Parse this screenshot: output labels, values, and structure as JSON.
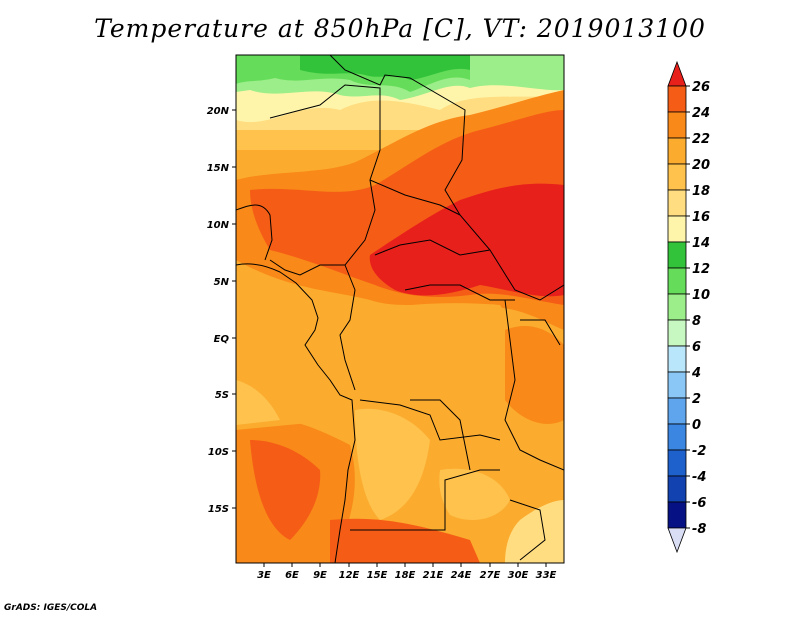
{
  "title": "Temperature at 850hPa [C], VT: 2019013100",
  "credit": "GrADS: IGES/COLA",
  "map": {
    "lat_ticks": [
      "20N",
      "15N",
      "10N",
      "5N",
      "EQ",
      "5S",
      "10S",
      "15S"
    ],
    "lon_ticks": [
      "3E",
      "6E",
      "9E",
      "12E",
      "15E",
      "18E",
      "21E",
      "24E",
      "27E",
      "30E",
      "33E"
    ]
  },
  "colorbar": {
    "levels": [
      "26",
      "24",
      "22",
      "20",
      "18",
      "16",
      "14",
      "12",
      "10",
      "8",
      "6",
      "4",
      "2",
      "0",
      "-2",
      "-4",
      "-6",
      "-8"
    ],
    "colors": [
      "#e8201c",
      "#f55d16",
      "#f98918",
      "#fbab2e",
      "#fec24d",
      "#ffdd80",
      "#fff5aa",
      "#33c33a",
      "#66dd5a",
      "#9cee8a",
      "#c8f8c2",
      "#b9e6fb",
      "#8ac7f6",
      "#5fa5ee",
      "#3a86e0",
      "#1f61cc",
      "#1241b0",
      "#061283",
      "#d9def5"
    ]
  }
}
